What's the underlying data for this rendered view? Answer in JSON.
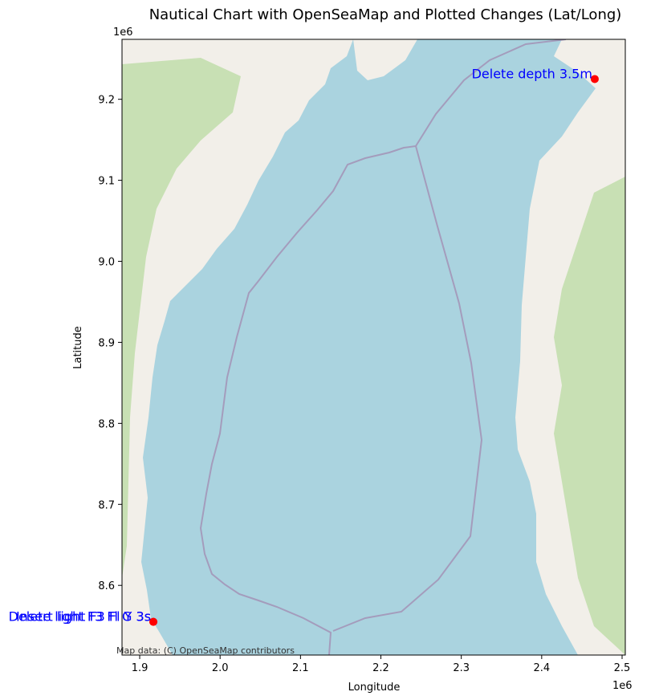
{
  "chart_data": {
    "type": "scatter",
    "title": "Nautical Chart with OpenSeaMap and Plotted Changes (Lat/Long)",
    "xlabel": "Longitude",
    "ylabel": "Latitude",
    "x_offset_label": "1e6",
    "y_offset_label": "1e6",
    "xlim": [
      1.878,
      2.504
    ],
    "ylim": [
      8.514,
      9.274
    ],
    "x_ticks": [
      1.9,
      2.0,
      2.1,
      2.2,
      2.3,
      2.4,
      2.5
    ],
    "x_tick_labels": [
      "1.9",
      "2.0",
      "2.1",
      "2.2",
      "2.3",
      "2.4",
      "2.5"
    ],
    "y_ticks": [
      8.6,
      8.7,
      8.8,
      8.9,
      9.0,
      9.1,
      9.2
    ],
    "y_tick_labels": [
      "8.6",
      "8.7",
      "8.8",
      "8.9",
      "9.0",
      "9.1",
      "9.2"
    ],
    "grid": false,
    "basemap": "OpenSeaMap tiles",
    "attribution": "Map data: (C) OpenSeaMap contributors",
    "marker_color": "#ff0000",
    "label_color": "#0000ff",
    "points": [
      {
        "x": 2.466,
        "y": 9.225,
        "label": "Delete depth 3.5m"
      },
      {
        "x": 1.917,
        "y": 8.555,
        "label": "Delete light F3 Fl G 3s"
      },
      {
        "x": 1.917,
        "y": 8.555,
        "label": "Insert light F3 Fl Y 3s"
      }
    ],
    "colors": {
      "sea": "#aad3df",
      "land": "#f2efe9",
      "forest": "#c8e0b4",
      "boundary": "#a49cbc"
    }
  }
}
